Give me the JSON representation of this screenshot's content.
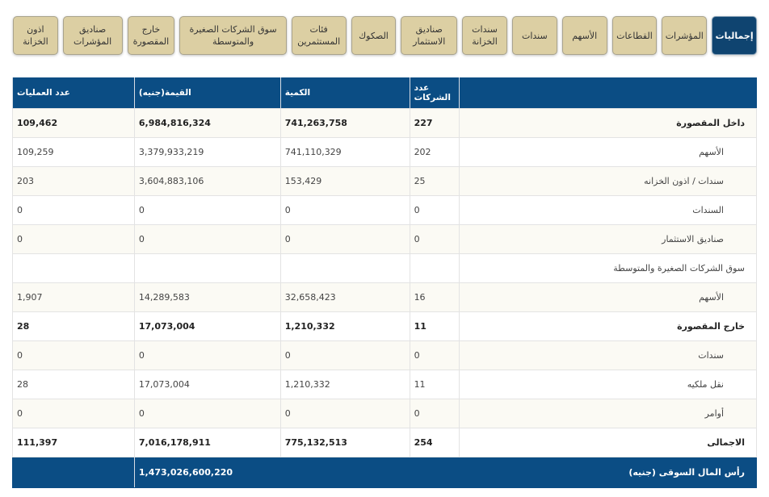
{
  "tabs": [
    "إجماليات",
    "المؤشرات",
    "القطاعات",
    "الأسهم",
    "سندات",
    "سندات الخزانة",
    "صناديق الاستثمار",
    "الصكوك",
    "فئات المستثمرين",
    "سوق الشركات الصغيرة والمتوسطة",
    "خارج المقصورة",
    "صناديق المؤشرات",
    "اذون الخزانة"
  ],
  "active_tab": "إجماليات",
  "headers": {
    "label": "",
    "companies": "عدد الشركات",
    "quantity": "الكمية",
    "value": "القيمة(جنيه)",
    "trades": "عدد العمليات"
  },
  "rows": [
    {
      "label": "داخل المقصورة",
      "companies": "227",
      "quantity": "741,263,758",
      "value": "6,984,816,324",
      "trades": "109,462"
    },
    {
      "label": "الأسهم",
      "companies": "202",
      "quantity": "741,110,329",
      "value": "3,379,933,219",
      "trades": "109,259"
    },
    {
      "label": "سندات / اذون الخزانه",
      "companies": "25",
      "quantity": "153,429",
      "value": "3,604,883,106",
      "trades": "203"
    },
    {
      "label": "السندات",
      "companies": "0",
      "quantity": "0",
      "value": "0",
      "trades": "0"
    },
    {
      "label": "صناديق الاستثمار",
      "companies": "0",
      "quantity": "0",
      "value": "0",
      "trades": "0"
    },
    {
      "label": "سوق الشركات الصغيرة والمتوسطة",
      "companies": "",
      "quantity": "",
      "value": "",
      "trades": ""
    },
    {
      "label": "الأسهم",
      "companies": "16",
      "quantity": "32,658,423",
      "value": "14,289,583",
      "trades": "1,907"
    },
    {
      "label": "خارج المقصورة",
      "companies": "11",
      "quantity": "1,210,332",
      "value": "17,073,004",
      "trades": "28"
    },
    {
      "label": "سندات",
      "companies": "0",
      "quantity": "0",
      "value": "0",
      "trades": "0"
    },
    {
      "label": "نقل ملكيه",
      "companies": "11",
      "quantity": "1,210,332",
      "value": "17,073,004",
      "trades": "28"
    },
    {
      "label": "أوامر",
      "companies": "0",
      "quantity": "0",
      "value": "0",
      "trades": "0"
    },
    {
      "label": "الاجمالى",
      "companies": "254",
      "quantity": "775,132,513",
      "value": "7,016,178,911",
      "trades": "111,397"
    }
  ],
  "footer": {
    "label": "رأس المال السوقى (جنيه)",
    "value": "1,473,026,600,220"
  }
}
